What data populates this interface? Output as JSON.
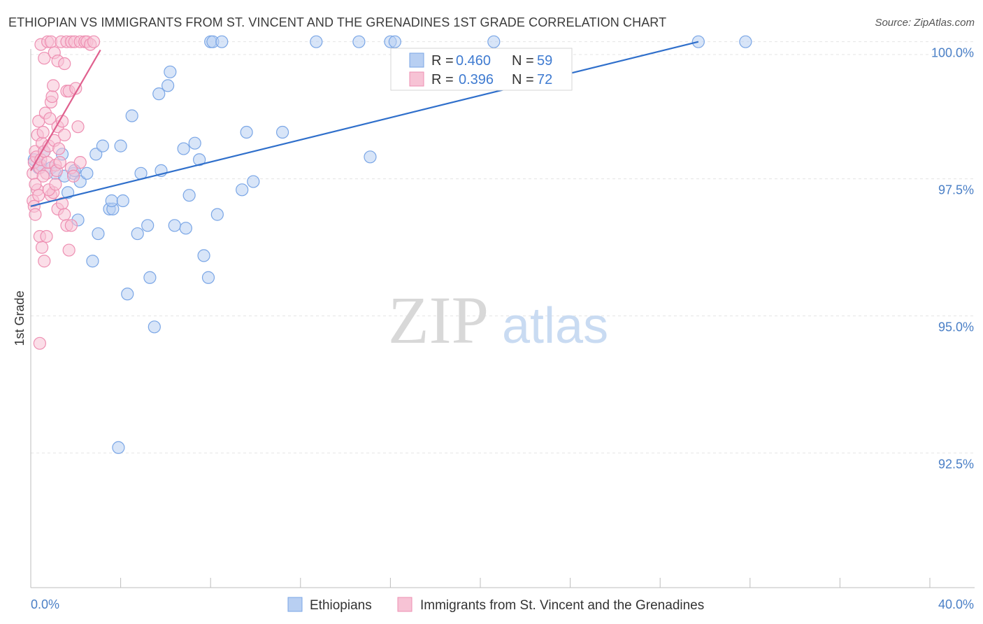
{
  "title": "ETHIOPIAN VS IMMIGRANTS FROM ST. VINCENT AND THE GRENADINES 1ST GRADE CORRELATION CHART",
  "source": "Source: ZipAtlas.com",
  "watermark": {
    "zip": "ZIP",
    "atlas": "atlas"
  },
  "chart_data": {
    "type": "scatter",
    "title": "ETHIOPIAN VS IMMIGRANTS FROM ST. VINCENT AND THE GRENADINES 1ST GRADE CORRELATION CHART",
    "xlabel": "",
    "ylabel": "1st Grade",
    "xlim": [
      0,
      40
    ],
    "ylim": [
      90.25,
      100.2
    ],
    "x_tick_labels": [
      {
        "value": 0,
        "label": "0.0%"
      },
      {
        "value": 40,
        "label": "40.0%"
      }
    ],
    "x_minor_ticks": [
      4,
      8,
      12,
      16,
      20,
      24,
      28,
      32,
      36,
      40
    ],
    "y_ticks": [
      {
        "value": 100.0,
        "label": "100.0%"
      },
      {
        "value": 97.5,
        "label": "97.5%"
      },
      {
        "value": 95.0,
        "label": "95.0%"
      },
      {
        "value": 92.5,
        "label": "92.5%"
      }
    ],
    "grid": true,
    "legend": [
      {
        "r_label": "R =",
        "r": "0.460",
        "n_label": "N =",
        "n": "59"
      },
      {
        "r_label": "R =",
        "r": "0.396",
        "n_label": "N =",
        "n": "72"
      }
    ],
    "series": [
      {
        "name": "Ethiopians",
        "color": "#7aa6e6",
        "fill": "#b8cff2",
        "line_color": "#2f6fcb",
        "trend": [
          [
            0,
            97.0
          ],
          [
            29.7,
            100.0
          ]
        ],
        "points": [
          [
            0.15,
            97.85
          ],
          [
            0.45,
            97.75
          ],
          [
            0.6,
            98.0
          ],
          [
            0.9,
            97.7
          ],
          [
            1.1,
            97.6
          ],
          [
            1.4,
            97.95
          ],
          [
            1.5,
            97.55
          ],
          [
            1.9,
            97.6
          ],
          [
            1.65,
            97.25
          ],
          [
            1.95,
            97.65
          ],
          [
            2.2,
            97.45
          ],
          [
            2.5,
            97.6
          ],
          [
            2.1,
            96.75
          ],
          [
            2.9,
            97.95
          ],
          [
            3.0,
            96.5
          ],
          [
            3.2,
            98.1
          ],
          [
            2.75,
            96.0
          ],
          [
            3.5,
            96.95
          ],
          [
            3.65,
            96.95
          ],
          [
            3.6,
            97.1
          ],
          [
            4.1,
            97.1
          ],
          [
            4.0,
            98.1
          ],
          [
            4.3,
            95.4
          ],
          [
            4.5,
            98.65
          ],
          [
            4.75,
            96.5
          ],
          [
            4.9,
            97.6
          ],
          [
            5.2,
            96.65
          ],
          [
            5.3,
            95.7
          ],
          [
            5.5,
            94.8
          ],
          [
            5.7,
            99.05
          ],
          [
            5.8,
            97.65
          ],
          [
            6.1,
            99.2
          ],
          [
            6.2,
            99.45
          ],
          [
            3.9,
            92.6
          ],
          [
            6.4,
            96.65
          ],
          [
            6.8,
            98.05
          ],
          [
            6.9,
            96.6
          ],
          [
            7.05,
            97.2
          ],
          [
            7.3,
            98.15
          ],
          [
            7.5,
            97.85
          ],
          [
            7.7,
            96.1
          ],
          [
            7.9,
            95.7
          ],
          [
            8.0,
            100.0
          ],
          [
            8.1,
            100.0
          ],
          [
            8.5,
            100.0
          ],
          [
            8.3,
            96.85
          ],
          [
            9.4,
            97.3
          ],
          [
            9.6,
            98.35
          ],
          [
            9.9,
            97.45
          ],
          [
            11.2,
            98.35
          ],
          [
            12.7,
            100.0
          ],
          [
            14.6,
            100.0
          ],
          [
            15.1,
            97.9
          ],
          [
            16.0,
            100.0
          ],
          [
            16.2,
            100.0
          ],
          [
            20.6,
            100.0
          ],
          [
            29.7,
            100.0
          ],
          [
            31.8,
            100.0
          ],
          [
            0.35,
            97.7
          ]
        ]
      },
      {
        "name": "Immigrants from St. Vincent and the Grenadines",
        "color": "#ee8fb2",
        "fill": "#f7c3d5",
        "line_color": "#e0608e",
        "trend": [
          [
            0,
            97.65
          ],
          [
            3.1,
            99.85
          ]
        ],
        "points": [
          [
            0.1,
            97.6
          ],
          [
            0.15,
            97.8
          ],
          [
            0.2,
            98.0
          ],
          [
            0.25,
            97.9
          ],
          [
            0.3,
            98.3
          ],
          [
            0.35,
            98.55
          ],
          [
            0.4,
            97.7
          ],
          [
            0.45,
            97.85
          ],
          [
            0.5,
            98.15
          ],
          [
            0.55,
            98.35
          ],
          [
            0.6,
            98.0
          ],
          [
            0.65,
            98.7
          ],
          [
            0.7,
            97.6
          ],
          [
            0.75,
            97.8
          ],
          [
            0.8,
            98.1
          ],
          [
            0.85,
            98.6
          ],
          [
            0.9,
            98.9
          ],
          [
            0.95,
            99.0
          ],
          [
            1.0,
            99.2
          ],
          [
            1.05,
            98.2
          ],
          [
            1.1,
            97.75
          ],
          [
            1.15,
            97.65
          ],
          [
            1.2,
            98.45
          ],
          [
            1.25,
            98.05
          ],
          [
            1.3,
            97.8
          ],
          [
            1.4,
            98.55
          ],
          [
            1.5,
            98.3
          ],
          [
            1.6,
            99.1
          ],
          [
            1.7,
            99.1
          ],
          [
            1.8,
            97.7
          ],
          [
            1.9,
            97.55
          ],
          [
            2.0,
            99.15
          ],
          [
            2.1,
            98.45
          ],
          [
            2.2,
            97.8
          ],
          [
            0.1,
            97.1
          ],
          [
            0.15,
            97.0
          ],
          [
            0.2,
            96.85
          ],
          [
            0.3,
            97.3
          ],
          [
            0.4,
            96.45
          ],
          [
            0.5,
            96.25
          ],
          [
            0.6,
            96.0
          ],
          [
            0.7,
            96.45
          ],
          [
            0.9,
            97.2
          ],
          [
            1.0,
            97.25
          ],
          [
            1.2,
            96.95
          ],
          [
            1.4,
            97.05
          ],
          [
            1.5,
            96.85
          ],
          [
            1.6,
            96.65
          ],
          [
            1.7,
            96.2
          ],
          [
            1.8,
            96.65
          ],
          [
            0.4,
            94.5
          ],
          [
            0.45,
            99.95
          ],
          [
            0.6,
            99.7
          ],
          [
            0.75,
            100.0
          ],
          [
            0.9,
            100.0
          ],
          [
            1.05,
            99.8
          ],
          [
            1.2,
            99.65
          ],
          [
            1.35,
            100.0
          ],
          [
            1.5,
            99.6
          ],
          [
            1.6,
            100.0
          ],
          [
            1.8,
            100.0
          ],
          [
            1.95,
            100.0
          ],
          [
            2.2,
            100.0
          ],
          [
            2.4,
            100.0
          ],
          [
            2.5,
            100.0
          ],
          [
            2.65,
            99.95
          ],
          [
            2.8,
            100.0
          ],
          [
            0.2,
            97.4
          ],
          [
            0.35,
            97.2
          ],
          [
            0.55,
            97.55
          ],
          [
            0.8,
            97.3
          ],
          [
            1.1,
            97.4
          ]
        ]
      }
    ]
  }
}
